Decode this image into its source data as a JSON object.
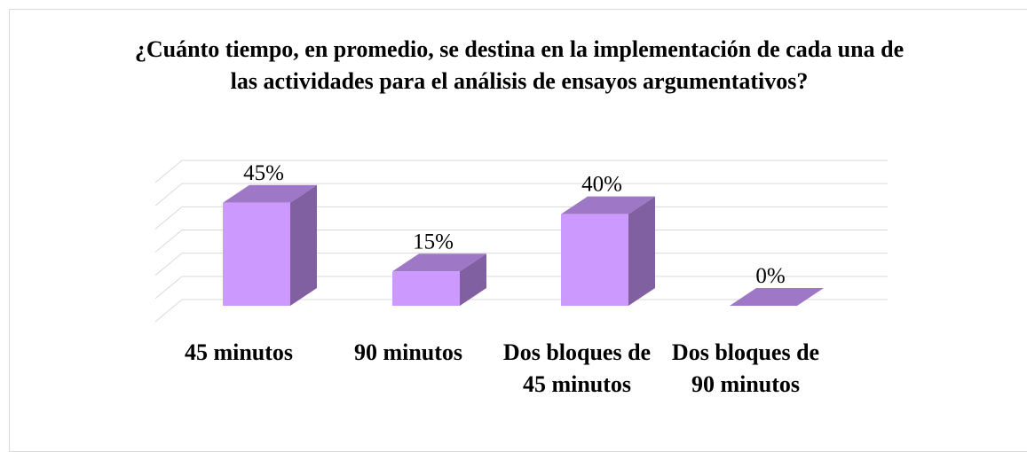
{
  "chart_data": {
    "type": "bar3d",
    "title": "¿Cuánto tiempo, en promedio, se destina en la implementación de cada una de las actividades para el análisis de ensayos argumentativos?",
    "categories": [
      "45 minutos",
      "90 minutos",
      "Dos bloques de 45 minutos",
      "Dos bloques de 90 minutos"
    ],
    "values": [
      45,
      15,
      40,
      0
    ],
    "value_labels": [
      "45%",
      "15%",
      "40%",
      "0%"
    ],
    "color": "#cc99ff",
    "ylim": [
      0,
      60
    ],
    "yticks": [
      0,
      10,
      20,
      30,
      40,
      50,
      60
    ],
    "grid": true
  }
}
